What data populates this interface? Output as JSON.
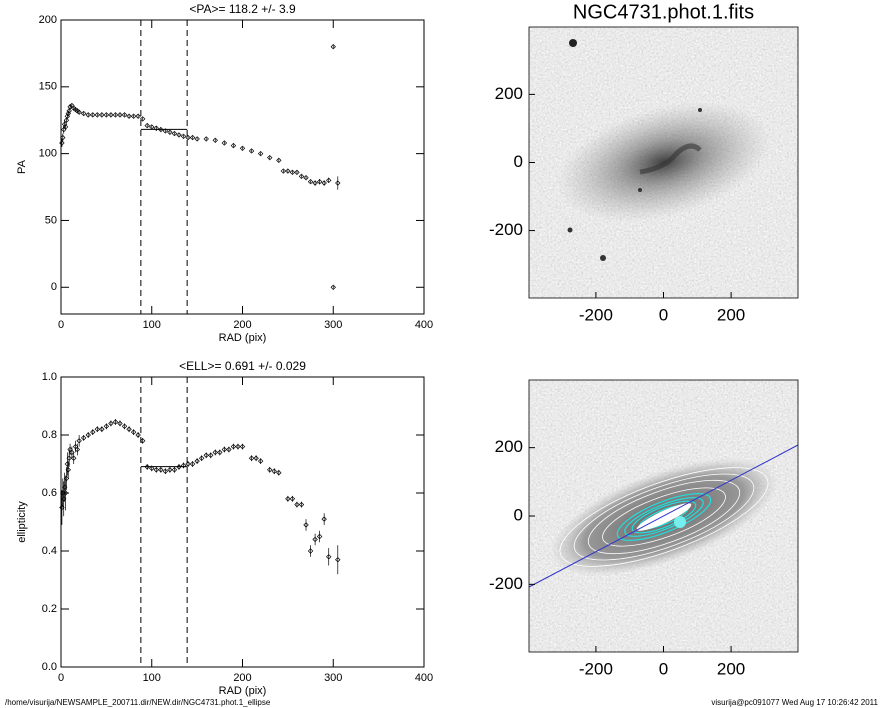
{
  "chart_data": [
    {
      "type": "scatter",
      "title": "<PA>= 118.2 +/-   3.9",
      "xlabel": "RAD (pix)",
      "ylabel": "PA",
      "xlim": [
        0,
        400
      ],
      "xticks": [
        0,
        100,
        200,
        300,
        400
      ],
      "ylim": [
        -20,
        200
      ],
      "yticks": [
        0,
        50,
        100,
        150,
        200
      ],
      "vlines": [
        88,
        139
      ],
      "mean": 118.2,
      "x": [
        1,
        2,
        3,
        4,
        5,
        6,
        7,
        8,
        9,
        10,
        12,
        14,
        16,
        18,
        20,
        25,
        30,
        35,
        40,
        45,
        50,
        55,
        60,
        65,
        70,
        75,
        80,
        85,
        90,
        95,
        100,
        105,
        110,
        115,
        120,
        125,
        130,
        135,
        140,
        145,
        150,
        160,
        170,
        180,
        190,
        200,
        210,
        220,
        230,
        240,
        245,
        250,
        255,
        260,
        265,
        270,
        275,
        280,
        285,
        290,
        295,
        300,
        300,
        305
      ],
      "y": [
        108,
        112,
        118,
        122,
        120,
        125,
        128,
        130,
        132,
        135,
        136,
        134,
        133,
        132,
        131,
        130,
        129,
        129,
        129,
        129,
        129,
        129,
        129,
        129,
        129,
        128,
        128,
        128,
        126,
        121,
        120,
        119,
        118,
        117,
        116,
        115,
        114,
        113,
        112,
        112,
        111,
        111,
        110,
        108,
        106,
        104,
        102,
        100,
        97,
        95,
        87,
        87,
        86,
        86,
        83,
        82,
        79,
        78,
        79,
        78,
        80,
        180,
        0,
        78
      ],
      "err": [
        3,
        3,
        3,
        3,
        2,
        2,
        2,
        2,
        2,
        2,
        1,
        1,
        1,
        1,
        1,
        1,
        1,
        1,
        1,
        1,
        1,
        1,
        1,
        1,
        1,
        1,
        1,
        1,
        1,
        1,
        1,
        1,
        1,
        1,
        1,
        1,
        1,
        1,
        1,
        1,
        1,
        1,
        1,
        1,
        1,
        1,
        1,
        1,
        1,
        1,
        1,
        1,
        1,
        1,
        1,
        1,
        1,
        2,
        2,
        2,
        2,
        1,
        1,
        5
      ]
    },
    {
      "type": "scatter",
      "title": "<ELL>= 0.691 +/-  0.029",
      "xlabel": "RAD (pix)",
      "ylabel": "ellipticity",
      "xlim": [
        0,
        400
      ],
      "xticks": [
        0,
        100,
        200,
        300,
        400
      ],
      "ylim": [
        0,
        1
      ],
      "yticks": [
        {
          "value": 0,
          "label": "0.0"
        },
        0.2,
        0.4,
        0.6,
        0.8,
        {
          "value": 1,
          "label": "1.0"
        }
      ],
      "vlines": [
        88,
        139
      ],
      "mean": 0.691,
      "x": [
        1,
        2,
        3,
        4,
        5,
        6,
        7,
        8,
        9,
        10,
        12,
        14,
        16,
        18,
        20,
        25,
        30,
        35,
        40,
        45,
        50,
        55,
        60,
        65,
        70,
        75,
        80,
        85,
        90,
        95,
        100,
        105,
        110,
        115,
        120,
        125,
        130,
        135,
        140,
        145,
        150,
        155,
        160,
        165,
        170,
        175,
        180,
        185,
        190,
        195,
        200,
        210,
        215,
        220,
        230,
        235,
        240,
        250,
        255,
        260,
        265,
        270,
        275,
        280,
        285,
        290,
        295,
        305
      ],
      "y": [
        0.55,
        0.6,
        0.58,
        0.62,
        0.6,
        0.65,
        0.7,
        0.68,
        0.72,
        0.75,
        0.74,
        0.72,
        0.76,
        0.75,
        0.78,
        0.79,
        0.8,
        0.81,
        0.82,
        0.82,
        0.83,
        0.84,
        0.845,
        0.84,
        0.83,
        0.82,
        0.81,
        0.8,
        0.78,
        0.69,
        0.685,
        0.68,
        0.68,
        0.675,
        0.68,
        0.68,
        0.69,
        0.695,
        0.7,
        0.7,
        0.71,
        0.72,
        0.73,
        0.73,
        0.74,
        0.74,
        0.75,
        0.75,
        0.76,
        0.76,
        0.76,
        0.72,
        0.72,
        0.71,
        0.68,
        0.675,
        0.67,
        0.58,
        0.58,
        0.56,
        0.56,
        0.49,
        0.4,
        0.44,
        0.45,
        0.51,
        0.38,
        0.37
      ],
      "err": [
        0.06,
        0.05,
        0.06,
        0.05,
        0.06,
        0.04,
        0.04,
        0.03,
        0.03,
        0.02,
        0.02,
        0.02,
        0.02,
        0.02,
        0.02,
        0.01,
        0.01,
        0.01,
        0.01,
        0.01,
        0.01,
        0.01,
        0.01,
        0.01,
        0.01,
        0.01,
        0.01,
        0.01,
        0.01,
        0.01,
        0.01,
        0.01,
        0.01,
        0.01,
        0.01,
        0.01,
        0.01,
        0.01,
        0.01,
        0.01,
        0.01,
        0.01,
        0.01,
        0.01,
        0.01,
        0.01,
        0.01,
        0.01,
        0.01,
        0.01,
        0.01,
        0.01,
        0.01,
        0.01,
        0.01,
        0.01,
        0.01,
        0.01,
        0.01,
        0.01,
        0.01,
        0.02,
        0.02,
        0.02,
        0.02,
        0.02,
        0.03,
        0.05
      ]
    },
    {
      "type": "image",
      "title": "NGC4731.phot.1.fits",
      "xlim": [
        -398,
        398
      ],
      "ylim": [
        -398,
        398
      ],
      "xticks": [
        -200,
        0,
        200
      ],
      "yticks": [
        -200,
        0,
        200
      ]
    },
    {
      "type": "image",
      "xlim": [
        -398,
        398
      ],
      "ylim": [
        -398,
        398
      ],
      "xticks": [
        -200,
        0,
        200
      ],
      "yticks": [
        -200,
        0,
        200
      ]
    }
  ],
  "footer": {
    "left": "/home/visurija/NEWSAMPLE_200711.dir/NEW.dir/NGC4731.phot.1_ellipse",
    "right": "visurija@pc091077  Wed Aug 17 10:26:42 2011"
  }
}
